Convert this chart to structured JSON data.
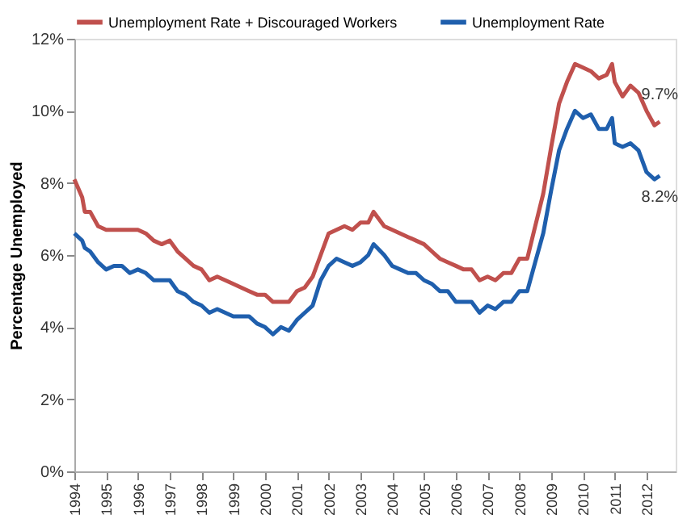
{
  "chart_data": {
    "type": "line",
    "ylabel": "Percentage Unemployed",
    "x": [
      "1994-01",
      "1994-04",
      "1994-05",
      "1994-07",
      "1994-10",
      "1995-01",
      "1995-04",
      "1995-07",
      "1995-10",
      "1996-01",
      "1996-04",
      "1996-07",
      "1996-10",
      "1997-01",
      "1997-04",
      "1997-07",
      "1997-10",
      "1998-01",
      "1998-04",
      "1998-07",
      "1998-10",
      "1999-01",
      "1999-04",
      "1999-07",
      "1999-10",
      "2000-01",
      "2000-04",
      "2000-07",
      "2000-10",
      "2001-01",
      "2001-04",
      "2001-07",
      "2001-10",
      "2002-01",
      "2002-04",
      "2002-07",
      "2002-10",
      "2003-01",
      "2003-04",
      "2003-06",
      "2003-10",
      "2004-01",
      "2004-04",
      "2004-07",
      "2004-10",
      "2005-01",
      "2005-04",
      "2005-07",
      "2005-10",
      "2006-01",
      "2006-04",
      "2006-07",
      "2006-10",
      "2007-01",
      "2007-04",
      "2007-07",
      "2007-10",
      "2008-01",
      "2008-04",
      "2008-07",
      "2008-10",
      "2009-01",
      "2009-04",
      "2009-07",
      "2009-10",
      "2010-01",
      "2010-04",
      "2010-07",
      "2010-10",
      "2010-12",
      "2011-01",
      "2011-04",
      "2011-07",
      "2011-10",
      "2012-01",
      "2012-04",
      "2012-06"
    ],
    "series": [
      {
        "name": "Unemployment Rate + Discouraged Workers",
        "color": "#c0504d",
        "values": [
          8.1,
          7.6,
          7.2,
          7.2,
          6.8,
          6.7,
          6.7,
          6.7,
          6.7,
          6.7,
          6.6,
          6.4,
          6.3,
          6.4,
          6.1,
          5.9,
          5.7,
          5.6,
          5.3,
          5.4,
          5.3,
          5.2,
          5.1,
          5.0,
          4.9,
          4.9,
          4.7,
          4.7,
          4.7,
          5.0,
          5.1,
          5.4,
          6.0,
          6.6,
          6.7,
          6.8,
          6.7,
          6.9,
          6.9,
          7.2,
          6.8,
          6.7,
          6.6,
          6.5,
          6.4,
          6.3,
          6.1,
          5.9,
          5.8,
          5.7,
          5.6,
          5.6,
          5.3,
          5.4,
          5.3,
          5.5,
          5.5,
          5.9,
          5.9,
          6.8,
          7.7,
          9.0,
          10.2,
          10.8,
          11.3,
          11.2,
          11.1,
          10.9,
          11.0,
          11.3,
          10.8,
          10.4,
          10.7,
          10.5,
          10.0,
          9.6,
          9.7
        ]
      },
      {
        "name": "Unemployment Rate",
        "color": "#1f5fad",
        "values": [
          6.6,
          6.4,
          6.2,
          6.1,
          5.8,
          5.6,
          5.7,
          5.7,
          5.5,
          5.6,
          5.5,
          5.3,
          5.3,
          5.3,
          5.0,
          4.9,
          4.7,
          4.6,
          4.4,
          4.5,
          4.4,
          4.3,
          4.3,
          4.3,
          4.1,
          4.0,
          3.8,
          4.0,
          3.9,
          4.2,
          4.4,
          4.6,
          5.3,
          5.7,
          5.9,
          5.8,
          5.7,
          5.8,
          6.0,
          6.3,
          6.0,
          5.7,
          5.6,
          5.5,
          5.5,
          5.3,
          5.2,
          5.0,
          5.0,
          4.7,
          4.7,
          4.7,
          4.4,
          4.6,
          4.5,
          4.7,
          4.7,
          5.0,
          5.0,
          5.8,
          6.6,
          7.8,
          8.9,
          9.5,
          10.0,
          9.8,
          9.9,
          9.5,
          9.5,
          9.8,
          9.1,
          9.0,
          9.1,
          8.9,
          8.3,
          8.1,
          8.2
        ]
      }
    ],
    "xlim": [
      "1994-01",
      "2012-12"
    ],
    "xticks": [
      {
        "value": "1994",
        "label": "1994"
      },
      {
        "value": "1995",
        "label": "1995"
      },
      {
        "value": "1996",
        "label": "1996"
      },
      {
        "value": "1997",
        "label": "1997"
      },
      {
        "value": "1998",
        "label": "1998"
      },
      {
        "value": "1999",
        "label": "1999"
      },
      {
        "value": "2000",
        "label": "2000"
      },
      {
        "value": "2001",
        "label": "2001"
      },
      {
        "value": "2002",
        "label": "2002"
      },
      {
        "value": "2003",
        "label": "2003"
      },
      {
        "value": "2004",
        "label": "2004"
      },
      {
        "value": "2005",
        "label": "2005"
      },
      {
        "value": "2006",
        "label": "2006"
      },
      {
        "value": "2007",
        "label": "2007"
      },
      {
        "value": "2008",
        "label": "2008"
      },
      {
        "value": "2009",
        "label": "2009"
      },
      {
        "value": "2010",
        "label": "2010"
      },
      {
        "value": "2011",
        "label": "2011"
      },
      {
        "value": "2012",
        "label": "2012"
      }
    ],
    "ylim": [
      0,
      12
    ],
    "yticks": [
      {
        "value": 0,
        "label": "0%"
      },
      {
        "value": 2,
        "label": "2%"
      },
      {
        "value": 4,
        "label": "4%"
      },
      {
        "value": 6,
        "label": "6%"
      },
      {
        "value": 8,
        "label": "8%"
      },
      {
        "value": 10,
        "label": "10%"
      },
      {
        "value": 12,
        "label": "12%"
      }
    ],
    "annotations": [
      {
        "text": "9.7%",
        "x": "2012-06",
        "y": 9.7
      },
      {
        "text": "8.2%",
        "x": "2012-06",
        "y": 8.2
      }
    ],
    "grid": false,
    "legend": "top",
    "marker": "none",
    "line_style": "solid"
  }
}
